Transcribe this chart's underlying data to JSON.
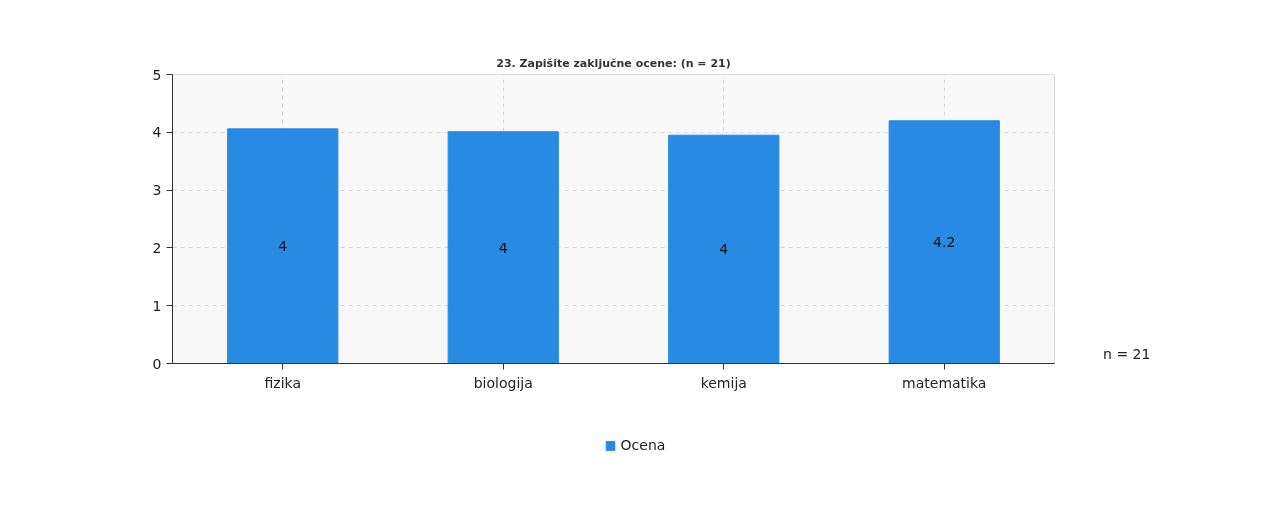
{
  "chart_data": {
    "type": "bar",
    "title": "23. Zapišite zaključne ocene: (n = 21)",
    "categories": [
      "fizika",
      "biologija",
      "kemija",
      "matematika"
    ],
    "series": [
      {
        "name": "Ocena",
        "color": "#288ae3",
        "values": [
          4.06,
          4.01,
          3.95,
          4.2
        ],
        "value_labels": [
          "4",
          "4",
          "4",
          "4.2"
        ]
      }
    ],
    "ylim": [
      0,
      5
    ],
    "yticks": [
      0,
      1,
      2,
      3,
      4,
      5
    ],
    "grid": true,
    "legend": "bottom",
    "annotations": [
      "n = 21"
    ]
  }
}
